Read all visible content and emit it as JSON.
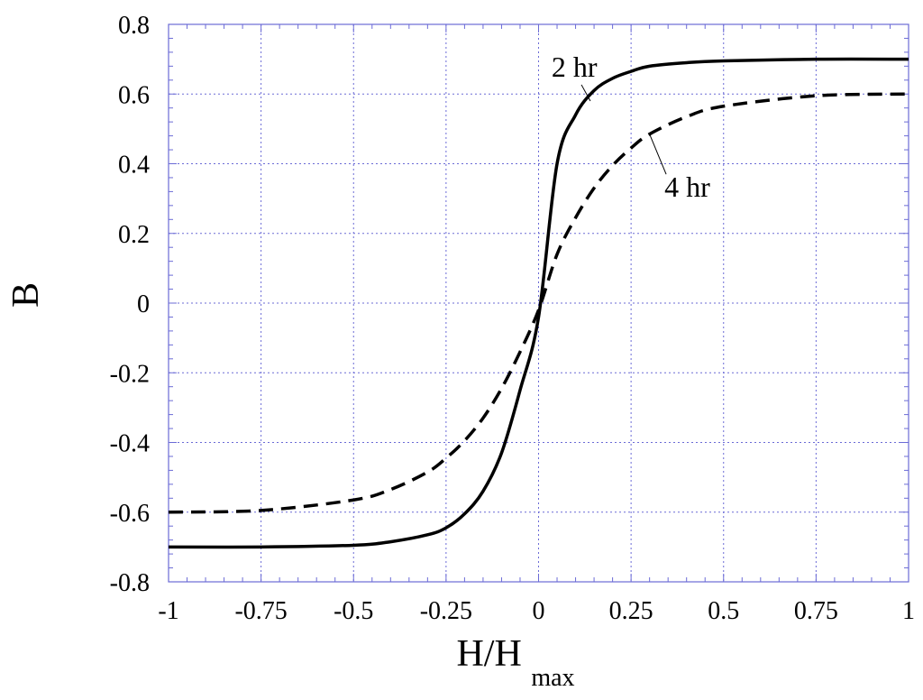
{
  "chart_data": {
    "type": "line",
    "title": "",
    "xlabel": "H/H",
    "xlabel_subscript": "max",
    "ylabel": "B",
    "xlim": [
      -1,
      1
    ],
    "ylim": [
      -0.8,
      0.8
    ],
    "x_ticks": [
      -1,
      -0.75,
      -0.5,
      -0.25,
      0,
      0.25,
      0.5,
      0.75,
      1
    ],
    "x_tick_labels": [
      "-1",
      "-0.75",
      "-0.5",
      "-0.25",
      "0",
      "0.25",
      "0.5",
      "0.75",
      "1"
    ],
    "y_ticks": [
      -0.8,
      -0.6,
      -0.4,
      -0.2,
      0,
      0.2,
      0.4,
      0.6,
      0.8
    ],
    "y_tick_labels": [
      "-0.8",
      "-0.6",
      "-0.4",
      "-0.2",
      "0",
      "0.2",
      "0.4",
      "0.6",
      "0.8"
    ],
    "grid": true,
    "grid_color": "#6b6bd6",
    "series": [
      {
        "label": "2 hr",
        "style": "solid",
        "color": "#000000",
        "x": [
          -1,
          -0.75,
          -0.5,
          -0.4,
          -0.3,
          -0.25,
          -0.2,
          -0.15,
          -0.1,
          -0.05,
          0,
          0.05,
          0.1,
          0.15,
          0.2,
          0.25,
          0.3,
          0.4,
          0.5,
          0.75,
          1
        ],
        "y": [
          -0.7,
          -0.7,
          -0.695,
          -0.685,
          -0.665,
          -0.645,
          -0.605,
          -0.54,
          -0.43,
          -0.25,
          -0.04,
          0.4,
          0.54,
          0.61,
          0.645,
          0.665,
          0.68,
          0.69,
          0.695,
          0.7,
          0.7
        ]
      },
      {
        "label": "4 hr",
        "style": "dashed",
        "color": "#000000",
        "x": [
          -1,
          -0.75,
          -0.5,
          -0.4,
          -0.3,
          -0.25,
          -0.2,
          -0.15,
          -0.1,
          -0.05,
          0,
          0.05,
          0.1,
          0.15,
          0.2,
          0.25,
          0.3,
          0.4,
          0.5,
          0.75,
          1
        ],
        "y": [
          -0.6,
          -0.595,
          -0.565,
          -0.535,
          -0.485,
          -0.445,
          -0.395,
          -0.33,
          -0.245,
          -0.14,
          -0.02,
          0.14,
          0.245,
          0.33,
          0.395,
          0.445,
          0.485,
          0.535,
          0.565,
          0.595,
          0.6
        ]
      }
    ],
    "annotations": [
      {
        "text": "2 hr",
        "series": 0,
        "at_x": 0.14,
        "at_y": 0.58,
        "text_x": 0.035,
        "text_y": 0.65
      },
      {
        "text": "4 hr",
        "series": 1,
        "at_x": 0.3,
        "at_y": 0.485,
        "text_x": 0.34,
        "text_y": 0.305
      }
    ]
  }
}
